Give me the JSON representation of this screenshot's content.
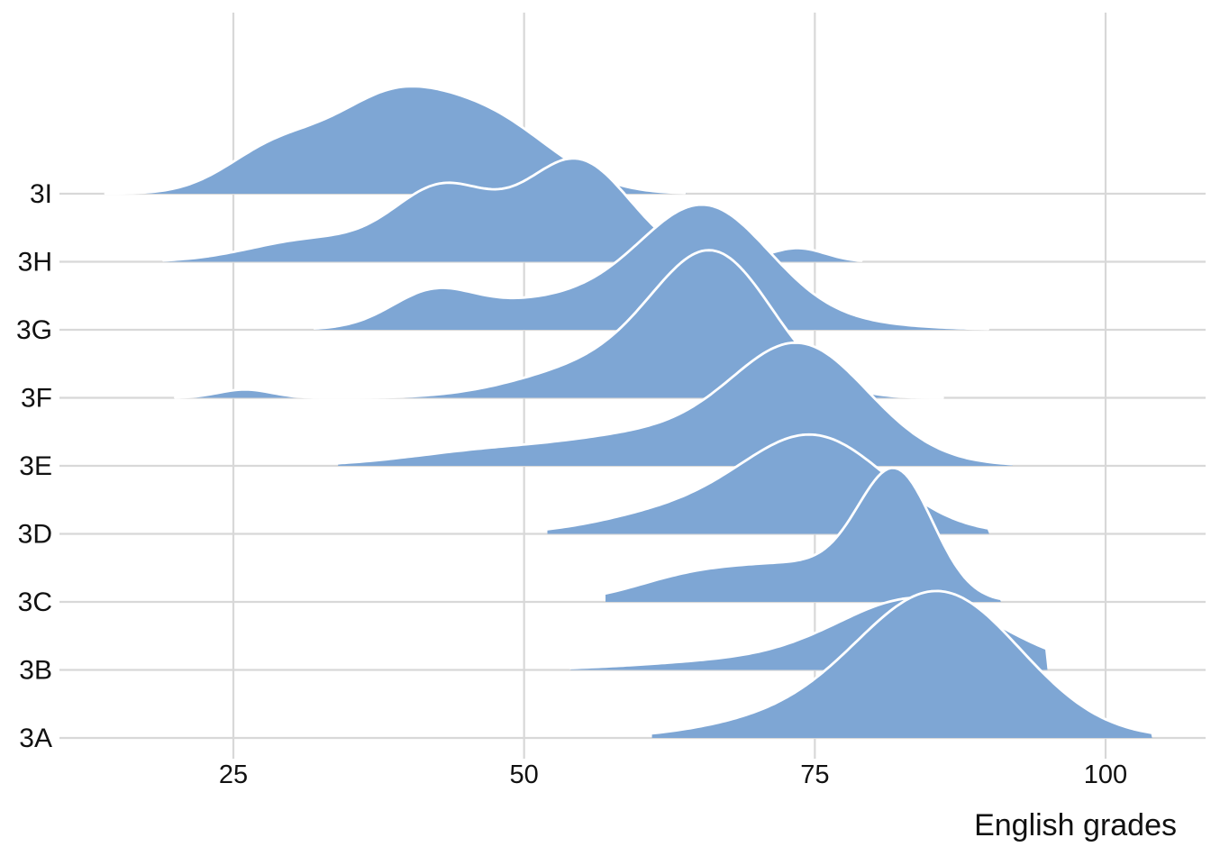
{
  "chart_data": {
    "type": "area",
    "subtype": "ridgeline",
    "title": "",
    "xlabel": "English grades",
    "ylabel": "",
    "x_axis": {
      "label": "English grades",
      "ticks": [
        25,
        50,
        75,
        100
      ],
      "range": [
        11,
        106
      ],
      "grid": true
    },
    "y_axis": {
      "categories_top_to_bottom": [
        "3I",
        "3H",
        "3G",
        "3F",
        "3E",
        "3D",
        "3C",
        "3B",
        "3A"
      ],
      "grid": true
    },
    "legend": "none",
    "style": {
      "fill_color": "#7ea6d4",
      "outline_color": "#ffffff",
      "gridline_color": "#d8d8d8",
      "text_color": "#111111",
      "background": "#ffffff"
    },
    "series": [
      {
        "name": "3I",
        "shape": "broad asymmetric, plateau top",
        "peak_grade": 38,
        "grade_range": [
          14,
          64
        ],
        "peak_height_rows": 1.58,
        "mixture": [
          {
            "mean": 38,
            "sd": 5.0,
            "weight": 0.42
          },
          {
            "mean": 47,
            "sd": 5.5,
            "weight": 0.4
          },
          {
            "mean": 28.5,
            "sd": 4.2,
            "weight": 0.18
          }
        ]
      },
      {
        "name": "3H",
        "shape": "bimodal with small bump near 73",
        "peak_grade": 54.5,
        "grade_range": [
          19,
          79
        ],
        "peak_height_rows": 1.52,
        "mixture": [
          {
            "mean": 54.5,
            "sd": 4.6,
            "weight": 0.5
          },
          {
            "mean": 43,
            "sd": 4.2,
            "weight": 0.32
          },
          {
            "mean": 32,
            "sd": 5.5,
            "weight": 0.13
          },
          {
            "mean": 73.5,
            "sd": 2.4,
            "weight": 0.035
          }
        ]
      },
      {
        "name": "3G",
        "shape": "left shoulder, long right tail",
        "peak_grade": 65.5,
        "grade_range": [
          32,
          90
        ],
        "peak_height_rows": 1.84,
        "mixture": [
          {
            "mean": 65.5,
            "sd": 5.6,
            "weight": 0.64
          },
          {
            "mean": 52,
            "sd": 7.5,
            "weight": 0.21
          },
          {
            "mean": 42,
            "sd": 3.5,
            "weight": 0.1
          },
          {
            "mean": 75,
            "sd": 7.0,
            "weight": 0.05
          }
        ]
      },
      {
        "name": "3F",
        "shape": "tall peak with tiny outlier bump near 26",
        "peak_grade": 66.5,
        "grade_range": [
          20,
          86
        ],
        "peak_height_rows": 2.17,
        "mixture": [
          {
            "mean": 66.3,
            "sd": 5.2,
            "weight": 0.76
          },
          {
            "mean": 56,
            "sd": 6.5,
            "weight": 0.2
          },
          {
            "mean": 26,
            "sd": 2.3,
            "weight": 0.02
          }
        ]
      },
      {
        "name": "3E",
        "shape": "long thin left tail from ~35",
        "peak_grade": 73.5,
        "grade_range": [
          34,
          92
        ],
        "peak_height_rows": 1.81,
        "mixture": [
          {
            "mean": 73.6,
            "sd": 5.8,
            "weight": 0.66
          },
          {
            "mean": 61,
            "sd": 7.0,
            "weight": 0.2
          },
          {
            "mean": 47,
            "sd": 7.0,
            "weight": 0.1
          },
          {
            "mean": 80,
            "sd": 6.0,
            "weight": 0.04
          }
        ]
      },
      {
        "name": "3D",
        "shape": "single peak",
        "peak_grade": 75,
        "grade_range": [
          52,
          90
        ],
        "peak_height_rows": 1.46,
        "mixture": [
          {
            "mean": 74.8,
            "sd": 6.3,
            "weight": 0.85
          },
          {
            "mean": 62,
            "sd": 6.0,
            "weight": 0.15
          }
        ]
      },
      {
        "name": "3C",
        "shape": "peak skewed left",
        "peak_grade": 82,
        "grade_range": [
          57,
          91
        ],
        "peak_height_rows": 1.97,
        "mixture": [
          {
            "mean": 82,
            "sd": 3.2,
            "weight": 0.55
          },
          {
            "mean": 74,
            "sd": 6.0,
            "weight": 0.3
          },
          {
            "mean": 64,
            "sd": 5.0,
            "weight": 0.15
          }
        ]
      },
      {
        "name": "3B",
        "shape": "mostly hidden behind 3A, tails visible",
        "peak_grade": 84,
        "grade_range": [
          54,
          95
        ],
        "peak_height_rows": 1.06,
        "mixture": [
          {
            "mean": 84,
            "sd": 7.0,
            "weight": 0.88
          },
          {
            "mean": 68,
            "sd": 8.0,
            "weight": 0.12
          }
        ]
      },
      {
        "name": "3A",
        "shape": "large front peak",
        "peak_grade": 85.5,
        "grade_range": [
          61,
          104
        ],
        "peak_height_rows": 2.16,
        "mixture": [
          {
            "mean": 85.6,
            "sd": 7.1,
            "weight": 0.92
          },
          {
            "mean": 71,
            "sd": 6.5,
            "weight": 0.08
          }
        ]
      }
    ]
  }
}
